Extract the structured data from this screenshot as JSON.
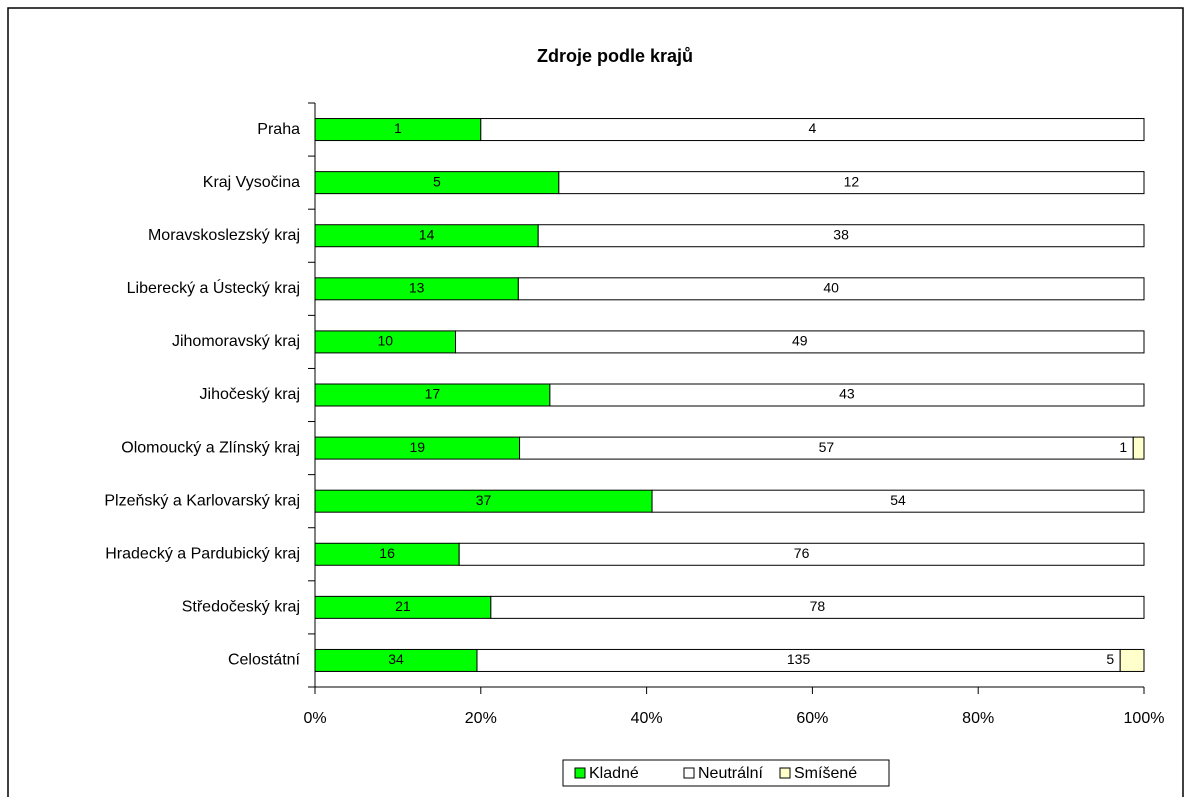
{
  "chart_data": {
    "type": "bar",
    "orientation": "horizontal",
    "stacking": "percent",
    "title": "Zdroje podle krajů",
    "categories": [
      "Praha",
      "Kraj Vysočina",
      "Moravskoslezský kraj",
      "Liberecký a Ústecký kraj",
      "Jihomoravský kraj",
      "Jihočeský kraj",
      "Olomoucký a Zlínský kraj",
      "Plzeňský a Karlovarský kraj",
      "Hradecký a Pardubický kraj",
      "Středočeský kraj",
      "Celostátní"
    ],
    "series": [
      {
        "name": "Kladné",
        "color": "#00ff00",
        "values": [
          1,
          5,
          14,
          13,
          10,
          17,
          19,
          37,
          16,
          21,
          34
        ]
      },
      {
        "name": "Neutrální",
        "color": "#ffffff",
        "values": [
          4,
          12,
          38,
          40,
          49,
          43,
          57,
          54,
          76,
          78,
          135
        ]
      },
      {
        "name": "Smíšené",
        "color": "#ffffcc",
        "values": [
          null,
          null,
          null,
          null,
          null,
          null,
          1,
          null,
          null,
          null,
          5
        ]
      }
    ],
    "xlim": [
      0,
      100
    ],
    "xticks": [
      {
        "value": 0,
        "label": "0%"
      },
      {
        "value": 20,
        "label": "20%"
      },
      {
        "value": 40,
        "label": "40%"
      },
      {
        "value": 60,
        "label": "60%"
      },
      {
        "value": 80,
        "label": "80%"
      },
      {
        "value": 100,
        "label": "100%"
      }
    ],
    "legend": "bottom",
    "grid": false
  }
}
